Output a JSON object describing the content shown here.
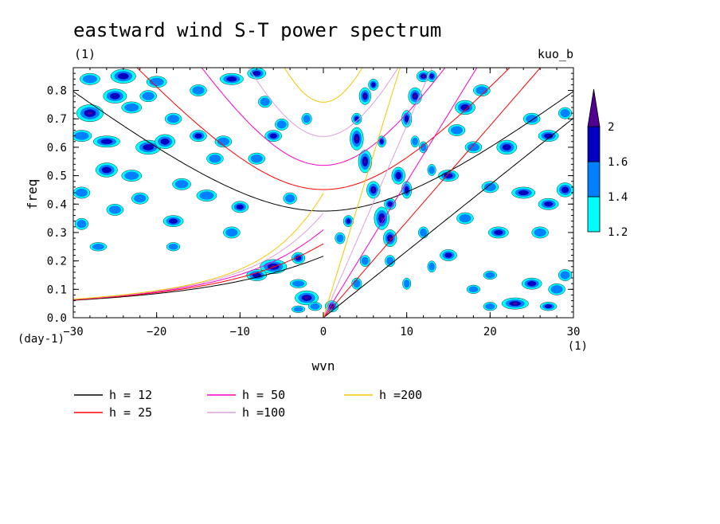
{
  "chart_data": {
    "type": "heatmap",
    "title": "eastward wind S-T power spectrum",
    "subtitle_left": "(1)",
    "subtitle_right": "kuo_b",
    "xlabel": "wvn",
    "ylabel": "freq",
    "x_unit": "(1)",
    "y_unit": "(day-1)",
    "xlim": [
      -30,
      30
    ],
    "ylim": [
      0,
      0.88
    ],
    "x_ticks": [
      -30,
      -20,
      -10,
      0,
      10,
      20,
      30
    ],
    "x_tick_labels": [
      "−30",
      "−20",
      "−10",
      "0",
      "10",
      "20",
      "30"
    ],
    "y_ticks": [
      0,
      0.1,
      0.2,
      0.3,
      0.4,
      0.5,
      0.6,
      0.7,
      0.8
    ],
    "y_tick_labels": [
      "0.0",
      "0.1",
      "0.2",
      "0.3",
      "0.4",
      "0.5",
      "0.6",
      "0.7",
      "0.8"
    ],
    "colorbar": {
      "levels": [
        1.2,
        1.4,
        1.6,
        2
      ],
      "labels": [
        "1.2",
        "1.4",
        "1.6",
        "2"
      ],
      "colors": [
        "#00ffff",
        "#0080ff",
        "#0000c0",
        "#500090"
      ]
    },
    "series": [
      {
        "name": "h = 12",
        "color": "#000000",
        "h": 12
      },
      {
        "name": "h = 25",
        "color": "#ff0000",
        "h": 25
      },
      {
        "name": "h = 50",
        "color": "#ff00c8",
        "h": 50
      },
      {
        "name": "h =100",
        "color": "#dda0dd",
        "h": 100
      },
      {
        "name": "h =200",
        "color": "#f0c800",
        "h": 200
      }
    ],
    "blobs": [
      [
        -28,
        0.84,
        1.2,
        0.02,
        1
      ],
      [
        -24,
        0.85,
        1.5,
        0.025,
        2
      ],
      [
        -20,
        0.83,
        1.2,
        0.02,
        1
      ],
      [
        -25,
        0.78,
        1.4,
        0.025,
        2
      ],
      [
        -28,
        0.72,
        1.6,
        0.03,
        3
      ],
      [
        -23,
        0.74,
        1.2,
        0.02,
        1
      ],
      [
        -18,
        0.7,
        1.0,
        0.02,
        1
      ],
      [
        -29,
        0.64,
        1.2,
        0.02,
        1
      ],
      [
        -26,
        0.62,
        1.6,
        0.02,
        2
      ],
      [
        -21,
        0.6,
        1.5,
        0.025,
        2
      ],
      [
        -19,
        0.62,
        1.2,
        0.025,
        2
      ],
      [
        -26,
        0.52,
        1.3,
        0.025,
        2
      ],
      [
        -23,
        0.5,
        1.2,
        0.02,
        1
      ],
      [
        -17,
        0.47,
        1.1,
        0.02,
        1
      ],
      [
        -14,
        0.43,
        1.2,
        0.02,
        1
      ],
      [
        -10,
        0.39,
        1.0,
        0.02,
        2
      ],
      [
        -29,
        0.44,
        1.0,
        0.02,
        1
      ],
      [
        -25,
        0.38,
        1.0,
        0.02,
        1
      ],
      [
        -18,
        0.34,
        1.2,
        0.02,
        2
      ],
      [
        -11,
        0.3,
        1.0,
        0.02,
        1
      ],
      [
        -27,
        0.25,
        1.0,
        0.015,
        1
      ],
      [
        -18,
        0.25,
        0.8,
        0.015,
        1
      ],
      [
        -11,
        0.84,
        1.4,
        0.02,
        2
      ],
      [
        -8,
        0.86,
        1.1,
        0.02,
        2
      ],
      [
        -5,
        0.68,
        0.8,
        0.02,
        1
      ],
      [
        -6,
        0.64,
        1.0,
        0.02,
        2
      ],
      [
        -2,
        0.7,
        0.6,
        0.02,
        1
      ],
      [
        -12,
        0.62,
        1.0,
        0.02,
        1
      ],
      [
        -8,
        0.56,
        1.0,
        0.02,
        1
      ],
      [
        -4,
        0.42,
        0.8,
        0.02,
        1
      ],
      [
        -15,
        0.64,
        1.0,
        0.02,
        2
      ],
      [
        -7,
        0.76,
        0.8,
        0.02,
        1
      ],
      [
        -6,
        0.18,
        1.6,
        0.025,
        3
      ],
      [
        -3,
        0.21,
        0.8,
        0.02,
        2
      ],
      [
        -8,
        0.15,
        1.2,
        0.02,
        2
      ],
      [
        -3,
        0.12,
        1.0,
        0.015,
        1
      ],
      [
        -2,
        0.07,
        1.4,
        0.025,
        3
      ],
      [
        -1,
        0.04,
        0.8,
        0.015,
        1
      ],
      [
        -3,
        0.03,
        0.8,
        0.012,
        1
      ],
      [
        1,
        0.04,
        0.8,
        0.02,
        3
      ],
      [
        4,
        0.63,
        0.8,
        0.04,
        3
      ],
      [
        4,
        0.7,
        0.6,
        0.02,
        2
      ],
      [
        5,
        0.55,
        0.8,
        0.04,
        3
      ],
      [
        5,
        0.78,
        0.7,
        0.03,
        3
      ],
      [
        6,
        0.45,
        0.8,
        0.03,
        3
      ],
      [
        6,
        0.82,
        0.6,
        0.02,
        2
      ],
      [
        7,
        0.35,
        0.9,
        0.04,
        3
      ],
      [
        8,
        0.28,
        0.8,
        0.03,
        3
      ],
      [
        8,
        0.4,
        0.7,
        0.02,
        2
      ],
      [
        9,
        0.5,
        0.8,
        0.03,
        2
      ],
      [
        10,
        0.45,
        0.6,
        0.03,
        2
      ],
      [
        11,
        0.78,
        0.8,
        0.03,
        3
      ],
      [
        12,
        0.85,
        0.8,
        0.02,
        3
      ],
      [
        13,
        0.85,
        0.6,
        0.02,
        2
      ],
      [
        10,
        0.7,
        0.6,
        0.03,
        2
      ],
      [
        12,
        0.6,
        0.5,
        0.02,
        1
      ],
      [
        13,
        0.52,
        0.5,
        0.02,
        1
      ],
      [
        11,
        0.62,
        0.5,
        0.02,
        1
      ],
      [
        7,
        0.62,
        0.5,
        0.02,
        2
      ],
      [
        3,
        0.34,
        0.6,
        0.02,
        2
      ],
      [
        2,
        0.28,
        0.6,
        0.02,
        1
      ],
      [
        5,
        0.2,
        0.6,
        0.02,
        1
      ],
      [
        4,
        0.12,
        0.6,
        0.02,
        1
      ],
      [
        8,
        0.2,
        0.6,
        0.02,
        1
      ],
      [
        12,
        0.3,
        0.6,
        0.02,
        1
      ],
      [
        10,
        0.12,
        0.5,
        0.02,
        1
      ],
      [
        13,
        0.18,
        0.5,
        0.02,
        1
      ],
      [
        17,
        0.74,
        1.2,
        0.025,
        2
      ],
      [
        19,
        0.8,
        1.0,
        0.02,
        1
      ],
      [
        16,
        0.66,
        1.0,
        0.02,
        1
      ],
      [
        18,
        0.6,
        1.0,
        0.02,
        1
      ],
      [
        22,
        0.6,
        1.2,
        0.025,
        2
      ],
      [
        25,
        0.7,
        1.0,
        0.02,
        1
      ],
      [
        27,
        0.64,
        1.2,
        0.02,
        2
      ],
      [
        29,
        0.72,
        0.8,
        0.02,
        1
      ],
      [
        15,
        0.5,
        1.2,
        0.02,
        2
      ],
      [
        20,
        0.46,
        1.0,
        0.02,
        1
      ],
      [
        24,
        0.44,
        1.4,
        0.02,
        2
      ],
      [
        27,
        0.4,
        1.2,
        0.02,
        2
      ],
      [
        29,
        0.45,
        1.0,
        0.025,
        2
      ],
      [
        17,
        0.35,
        1.0,
        0.02,
        1
      ],
      [
        21,
        0.3,
        1.2,
        0.02,
        2
      ],
      [
        26,
        0.3,
        1.0,
        0.02,
        1
      ],
      [
        15,
        0.22,
        1.0,
        0.02,
        2
      ],
      [
        20,
        0.15,
        0.8,
        0.015,
        1
      ],
      [
        25,
        0.12,
        1.2,
        0.02,
        2
      ],
      [
        28,
        0.1,
        1.0,
        0.02,
        1
      ],
      [
        23,
        0.05,
        1.6,
        0.02,
        3
      ],
      [
        27,
        0.04,
        1.0,
        0.015,
        2
      ],
      [
        20,
        0.04,
        0.8,
        0.015,
        1
      ],
      [
        29,
        0.15,
        0.8,
        0.02,
        1
      ],
      [
        18,
        0.1,
        0.8,
        0.015,
        1
      ],
      [
        -15,
        0.8,
        1.0,
        0.02,
        1
      ],
      [
        -21,
        0.78,
        1.0,
        0.02,
        1
      ],
      [
        -13,
        0.56,
        1.0,
        0.02,
        1
      ],
      [
        -29,
        0.33,
        0.8,
        0.02,
        1
      ],
      [
        -22,
        0.42,
        1.0,
        0.02,
        1
      ]
    ]
  }
}
